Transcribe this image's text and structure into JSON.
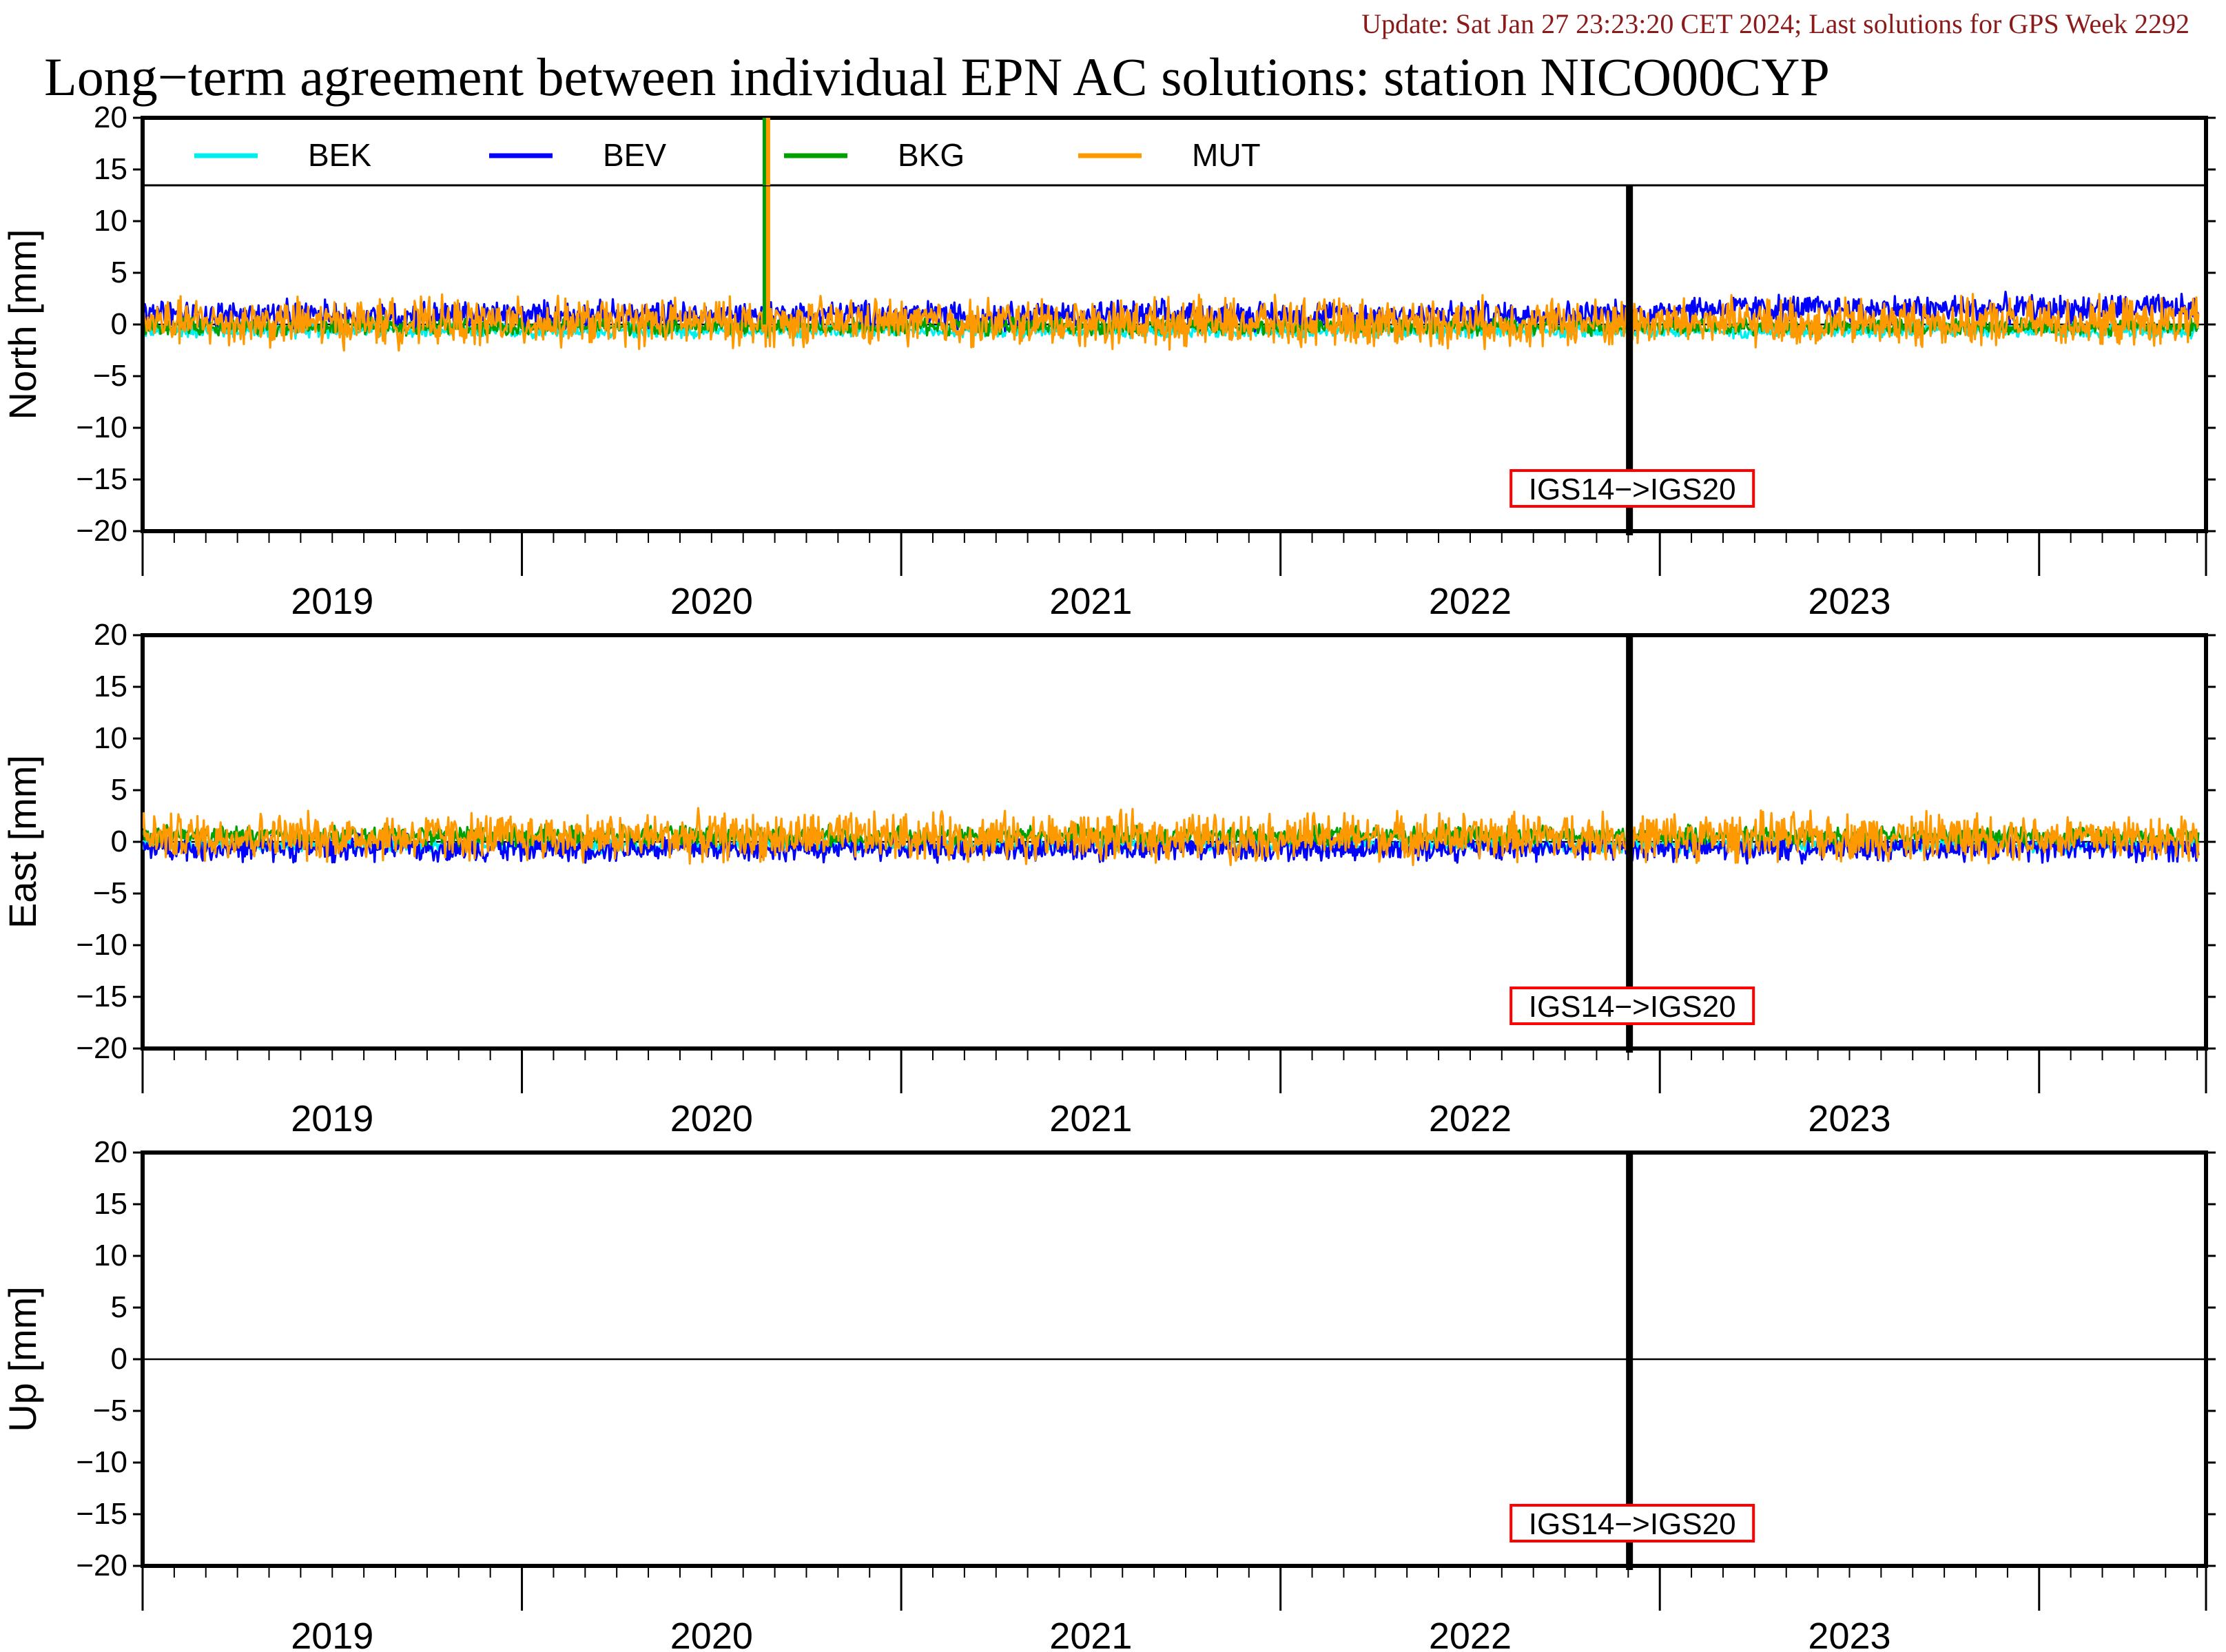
{
  "update_text": "Update: Sat Jan 27 23:23:20 CET 2024; Last solutions for GPS Week 2292",
  "title": "Long−term agreement between individual EPN AC solutions: station NICO00CYP",
  "colors": {
    "update": "#8b1a1a",
    "BEK": "#00f0f0",
    "BEV": "#0000ff",
    "BKG": "#00a000",
    "MUT": "#ff9900",
    "marker_box": "#ff0000"
  },
  "chart_data": [
    {
      "type": "line",
      "ylabel": "North [mm]",
      "ylim": [
        -20,
        20
      ],
      "yticks": [
        20,
        15,
        10,
        5,
        0,
        -5,
        -10,
        -15,
        -20
      ],
      "xlim": [
        2018.5,
        2023.94
      ],
      "xtick_labels": [
        "2019",
        "2020",
        "2021",
        "2022",
        "2023"
      ],
      "legend": [
        "BEK",
        "BEV",
        "BKG",
        "MUT"
      ],
      "legend_position": "top",
      "zero_line": 0,
      "frame_change": {
        "x": 2022.42,
        "label": "IGS14−>IGS20"
      },
      "series": [
        {
          "name": "BEK",
          "noise_amplitude": 0.6,
          "offset": -0.6
        },
        {
          "name": "BEV",
          "noise_amplitude": 1.2,
          "offset": 0.9
        },
        {
          "name": "BKG",
          "noise_amplitude": 0.7,
          "offset": -0.2
        },
        {
          "name": "MUT",
          "noise_amplitude": 2.0,
          "offset": 0.2
        }
      ],
      "spike": {
        "x": 2020.14,
        "series": [
          "BKG",
          "MUT"
        ],
        "value": 20
      }
    },
    {
      "type": "line",
      "ylabel": "East [mm]",
      "ylim": [
        -20,
        20
      ],
      "yticks": [
        20,
        15,
        10,
        5,
        0,
        -5,
        -10,
        -15,
        -20
      ],
      "xlim": [
        2018.5,
        2023.94
      ],
      "xtick_labels": [
        "2019",
        "2020",
        "2021",
        "2022",
        "2023"
      ],
      "zero_line": 0,
      "frame_change": {
        "x": 2022.42,
        "label": "IGS14−>IGS20"
      },
      "series": [
        {
          "name": "BEK",
          "noise_amplitude": 0.6,
          "offset": -0.3
        },
        {
          "name": "BEV",
          "noise_amplitude": 1.1,
          "offset": -0.6
        },
        {
          "name": "BKG",
          "noise_amplitude": 0.8,
          "offset": 0.6
        },
        {
          "name": "MUT",
          "noise_amplitude": 2.0,
          "offset": 0.5
        }
      ]
    },
    {
      "type": "line",
      "ylabel": "Up [mm]",
      "ylim": [
        -20,
        20
      ],
      "yticks": [
        20,
        15,
        10,
        5,
        0,
        -5,
        -10,
        -15,
        -20
      ],
      "xlim": [
        2018.5,
        2023.94
      ],
      "xtick_labels": [
        "2019",
        "2020",
        "2021",
        "2022",
        "2023"
      ],
      "zero_line": 0,
      "frame_change": {
        "x": 2022.42,
        "label": "IGS14−>IGS20"
      },
      "series": []
    }
  ]
}
